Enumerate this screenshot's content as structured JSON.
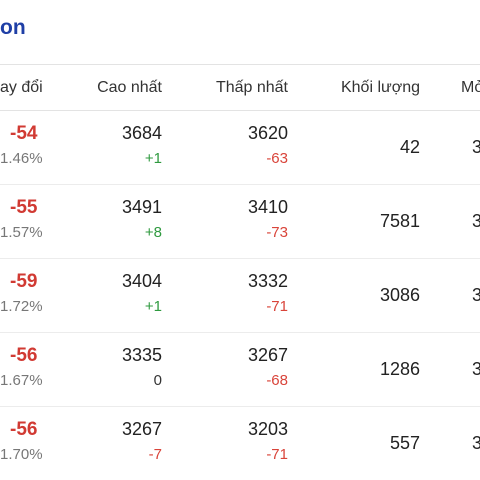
{
  "title": "on",
  "headers": {
    "change": "ay đổi",
    "high": "Cao nhất",
    "low": "Thấp nhất",
    "volume": "Khối lượng",
    "open": "Mở"
  },
  "rows": [
    {
      "change": "-54",
      "change_pct": "1.46%",
      "high": "3684",
      "high_diff": "+1",
      "low": "3620",
      "low_diff": "-63",
      "volume": "42",
      "open": "3"
    },
    {
      "change": "-55",
      "change_pct": "1.57%",
      "high": "3491",
      "high_diff": "+8",
      "low": "3410",
      "low_diff": "-73",
      "volume": "7581",
      "open": "3"
    },
    {
      "change": "-59",
      "change_pct": "1.72%",
      "high": "3404",
      "high_diff": "+1",
      "low": "3332",
      "low_diff": "-71",
      "volume": "3086",
      "open": "3"
    },
    {
      "change": "-56",
      "change_pct": "1.67%",
      "high": "3335",
      "high_diff": "0",
      "low": "3267",
      "low_diff": "-68",
      "volume": "1286",
      "open": "3"
    },
    {
      "change": "-56",
      "change_pct": "1.70%",
      "high": "3267",
      "high_diff": "-7",
      "low": "3203",
      "low_diff": "-71",
      "volume": "557",
      "open": "3"
    }
  ],
  "colors": {
    "title": "#1f3fa6",
    "negative": "#d9443a",
    "positive": "#2f9a3f"
  }
}
